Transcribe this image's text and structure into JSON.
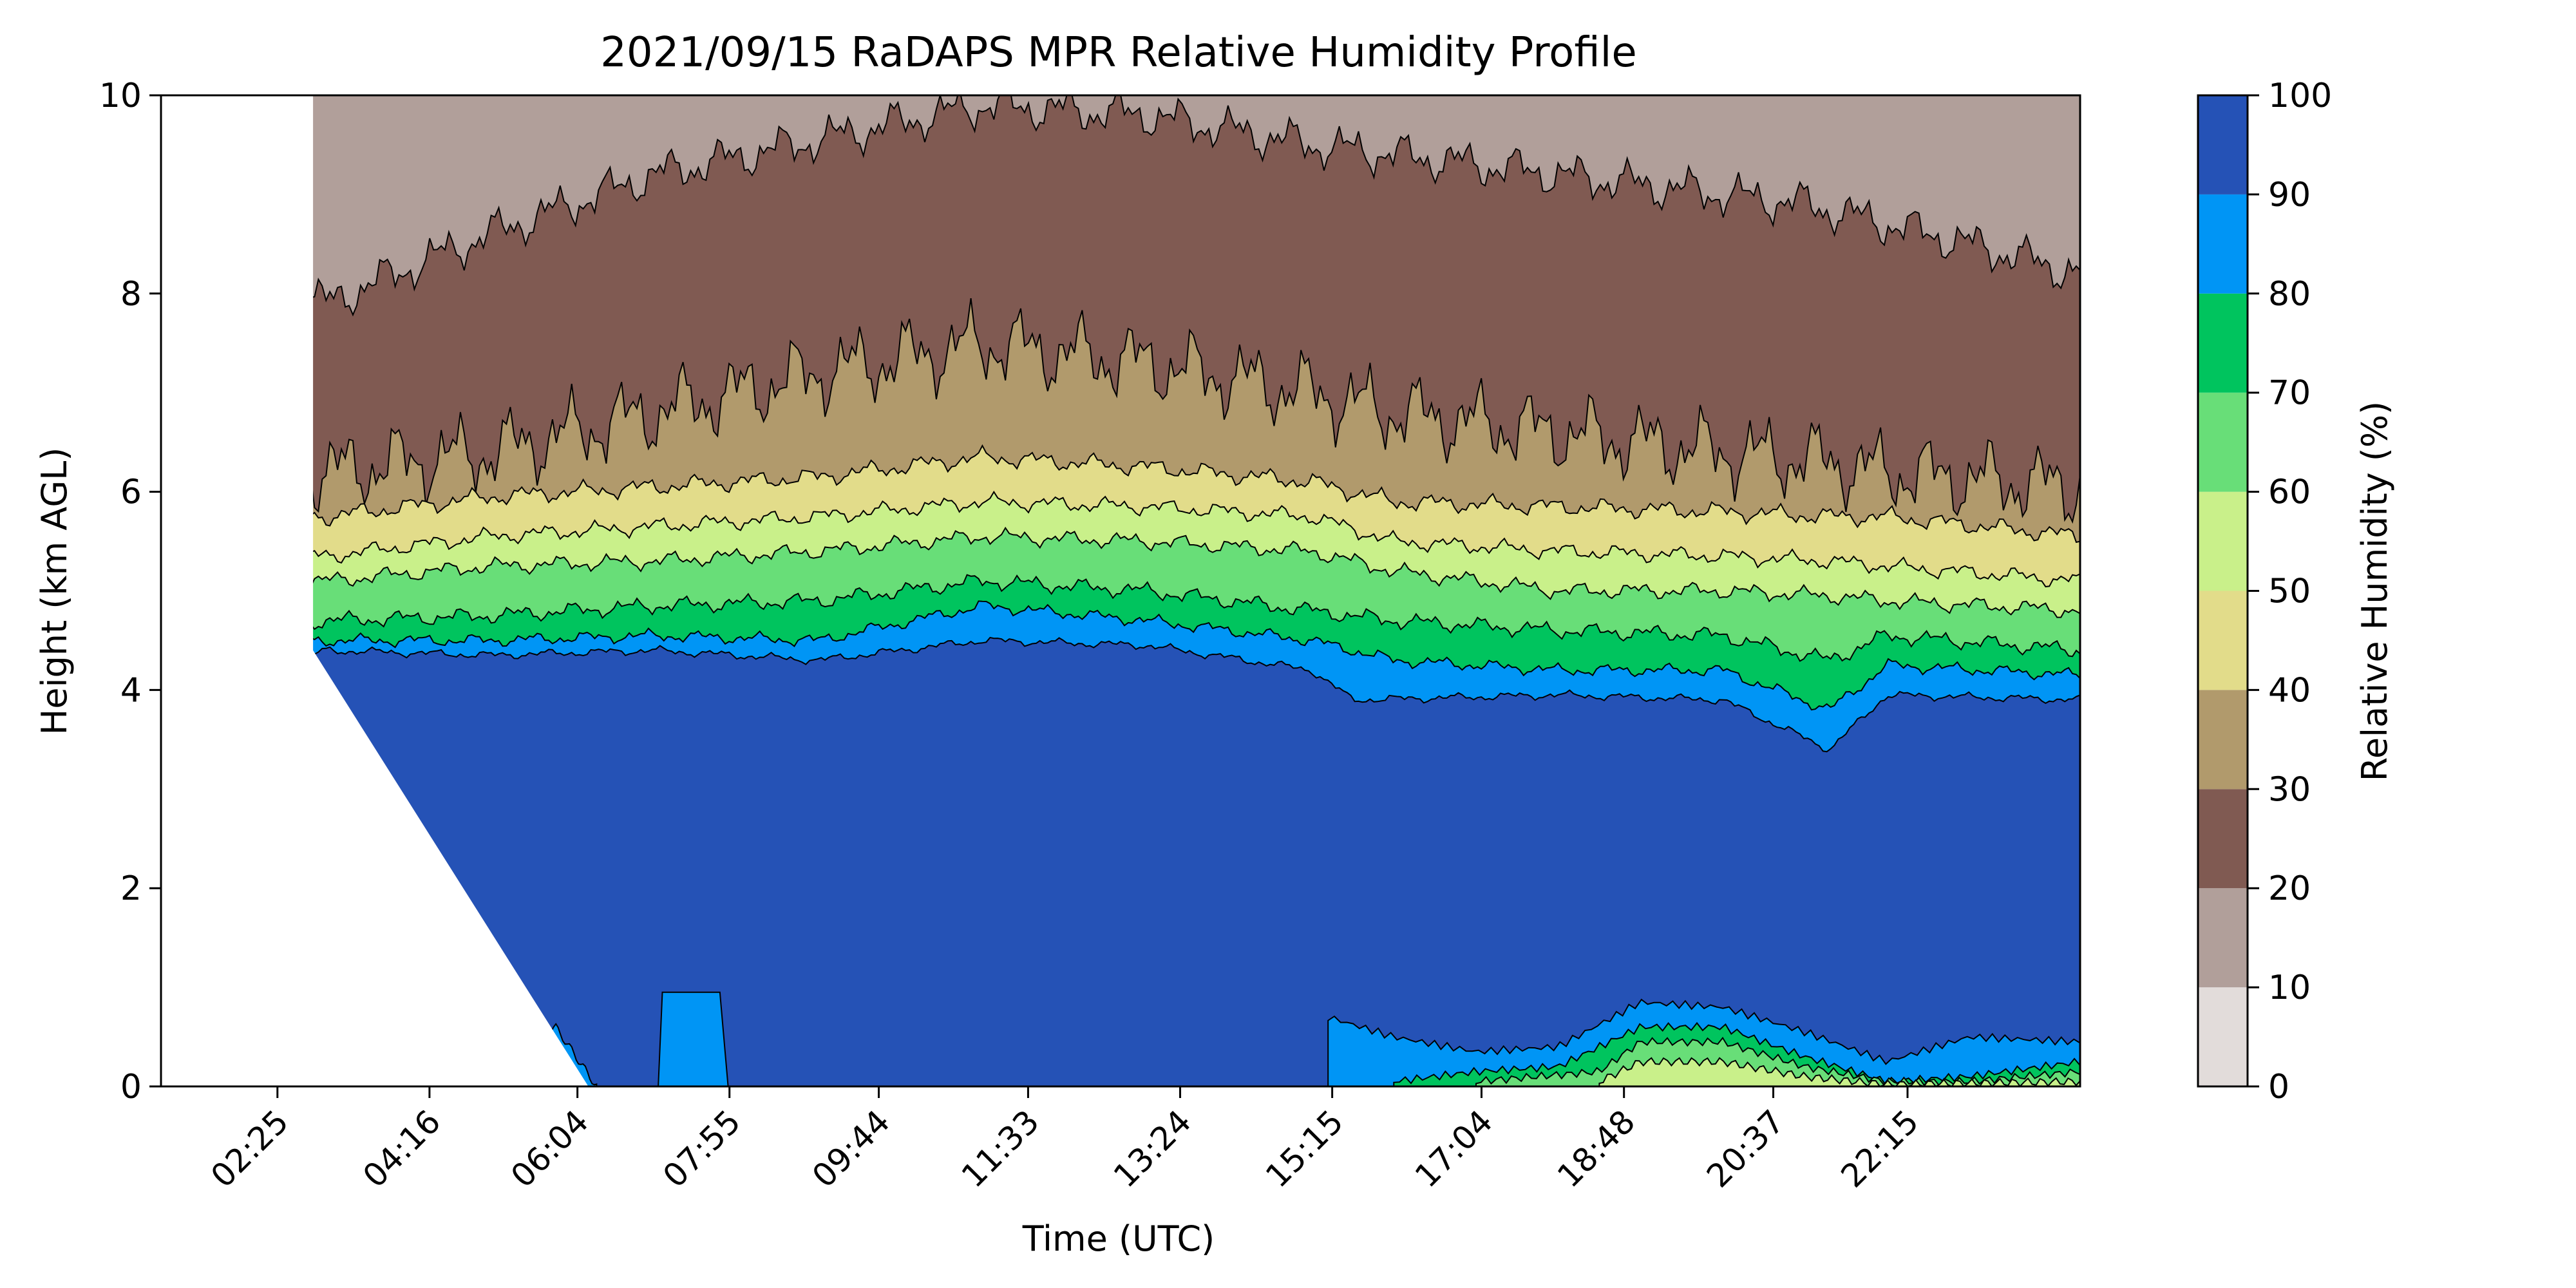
{
  "chart_data": {
    "type": "filled-contour",
    "title": "2021/09/15 RaDAPS MPR Relative Humidity Profile",
    "xlabel": "Time (UTC)",
    "ylabel": "Height (km AGL)",
    "x_ticks": [
      "02:25",
      "04:16",
      "06:04",
      "07:55",
      "09:44",
      "11:33",
      "13:24",
      "15:15",
      "17:04",
      "18:48",
      "20:37",
      "22:15"
    ],
    "x_ticks_decimal_hours": [
      2.4167,
      4.2667,
      6.0667,
      7.9167,
      9.7333,
      11.55,
      13.4,
      15.25,
      17.0667,
      18.8,
      20.6167,
      22.25
    ],
    "xlim_hours": [
      1.0,
      24.35
    ],
    "ylim": [
      0,
      10
    ],
    "y_ticks": [
      "0",
      "2",
      "4",
      "6",
      "8",
      "10"
    ],
    "colorbar": {
      "label": "Relative Humidity (%)",
      "ticks": [
        "0",
        "10",
        "20",
        "30",
        "40",
        "50",
        "60",
        "70",
        "80",
        "90",
        "100"
      ],
      "levels": [
        0,
        10,
        20,
        30,
        40,
        50,
        60,
        70,
        80,
        90,
        100
      ],
      "colors": [
        "#e2dcda",
        "#b19f9a",
        "#805a52",
        "#b19a6c",
        "#e2dc8a",
        "#c9f08a",
        "#68de78",
        "#00c45e",
        "#0095f5",
        "#2552b6"
      ]
    },
    "series": [
      {
        "values": [
          [
            1.0,
            4.15
          ],
          [
            2.5,
            4.25
          ],
          [
            3.0,
            4.4
          ],
          [
            5,
            4.35
          ],
          [
            7,
            4.4
          ],
          [
            9,
            4.3
          ],
          [
            11,
            4.5
          ],
          [
            13,
            4.45
          ],
          [
            15,
            4.2
          ],
          [
            15.5,
            3.9
          ],
          [
            18,
            3.95
          ],
          [
            20,
            3.9
          ],
          [
            21.3,
            3.4
          ],
          [
            22,
            3.95
          ],
          [
            24.35,
            3.9
          ]
        ]
      },
      {
        "values": [
          [
            1.0,
            4.4
          ],
          [
            3.0,
            4.5
          ],
          [
            5,
            4.5
          ],
          [
            7,
            4.55
          ],
          [
            9,
            4.5
          ],
          [
            11,
            4.85
          ],
          [
            13,
            4.7
          ],
          [
            15,
            4.5
          ],
          [
            16,
            4.3
          ],
          [
            18,
            4.2
          ],
          [
            20,
            4.2
          ],
          [
            21.3,
            3.8
          ],
          [
            22,
            4.25
          ],
          [
            24.35,
            4.15
          ]
        ]
      },
      {
        "values": [
          [
            1.0,
            4.6
          ],
          [
            3.0,
            4.7
          ],
          [
            5,
            4.75
          ],
          [
            7,
            4.85
          ],
          [
            9,
            4.9
          ],
          [
            11,
            5.1
          ],
          [
            13,
            5.0
          ],
          [
            15,
            4.8
          ],
          [
            16,
            4.7
          ],
          [
            18,
            4.6
          ],
          [
            20,
            4.55
          ],
          [
            21.3,
            4.3
          ],
          [
            22,
            4.55
          ],
          [
            24.35,
            4.4
          ]
        ]
      },
      {
        "values": [
          [
            1.0,
            5.1
          ],
          [
            3.0,
            5.1
          ],
          [
            5,
            5.25
          ],
          [
            7,
            5.3
          ],
          [
            9,
            5.4
          ],
          [
            11,
            5.55
          ],
          [
            13,
            5.5
          ],
          [
            15,
            5.4
          ],
          [
            16,
            5.2
          ],
          [
            18,
            5.0
          ],
          [
            20,
            5.0
          ],
          [
            21.3,
            4.95
          ],
          [
            22,
            4.9
          ],
          [
            24.35,
            4.8
          ]
        ]
      },
      {
        "values": [
          [
            1.0,
            5.4
          ],
          [
            3.0,
            5.35
          ],
          [
            5,
            5.55
          ],
          [
            7,
            5.65
          ],
          [
            9,
            5.75
          ],
          [
            11,
            5.9
          ],
          [
            13,
            5.85
          ],
          [
            15,
            5.75
          ],
          [
            16,
            5.5
          ],
          [
            18,
            5.4
          ],
          [
            20,
            5.35
          ],
          [
            21.3,
            5.3
          ],
          [
            22,
            5.25
          ],
          [
            24.35,
            5.1
          ]
        ]
      },
      {
        "values": [
          [
            1.0,
            5.8
          ],
          [
            3.0,
            5.75
          ],
          [
            5,
            5.95
          ],
          [
            7,
            6.05
          ],
          [
            9,
            6.15
          ],
          [
            11,
            6.35
          ],
          [
            13,
            6.25
          ],
          [
            15,
            6.1
          ],
          [
            16,
            5.9
          ],
          [
            18,
            5.85
          ],
          [
            20,
            5.8
          ],
          [
            21.3,
            5.75
          ],
          [
            22,
            5.75
          ],
          [
            24.35,
            5.55
          ]
        ]
      },
      {
        "values": [
          [
            1.0,
            6.3
          ],
          [
            3.0,
            6.2
          ],
          [
            5,
            6.4
          ],
          [
            7,
            6.8
          ],
          [
            9,
            7.2
          ],
          [
            11,
            7.5
          ],
          [
            13,
            7.3
          ],
          [
            15,
            7.0
          ],
          [
            16,
            6.8
          ],
          [
            18,
            6.6
          ],
          [
            20,
            6.4
          ],
          [
            21.3,
            6.3
          ],
          [
            22,
            6.2
          ],
          [
            24.35,
            6.05
          ]
        ]
      },
      {
        "values": [
          [
            1.0,
            8.6
          ],
          [
            3.0,
            7.9
          ],
          [
            5,
            8.6
          ],
          [
            7,
            9.2
          ],
          [
            9,
            9.55
          ],
          [
            11,
            9.9
          ],
          [
            13,
            9.8
          ],
          [
            15,
            9.5
          ],
          [
            17,
            9.3
          ],
          [
            19,
            9.1
          ],
          [
            21,
            8.9
          ],
          [
            23,
            8.5
          ],
          [
            24.35,
            8.2
          ]
        ]
      }
    ],
    "surface_layers": [
      {
        "values": [
          [
            3.0,
            0.35
          ],
          [
            4.0,
            0.25
          ],
          [
            5.0,
            0.4
          ],
          [
            5.8,
            0.6
          ],
          [
            6.3,
            0.0
          ]
        ]
      },
      {
        "values": [
          [
            15.2,
            0.7
          ],
          [
            16,
            0.5
          ],
          [
            17,
            0.35
          ],
          [
            18,
            0.4
          ],
          [
            19,
            0.85
          ],
          [
            20,
            0.8
          ],
          [
            21,
            0.55
          ],
          [
            22,
            0.25
          ],
          [
            23,
            0.5
          ],
          [
            24.35,
            0.45
          ]
        ]
      },
      {
        "values": [
          [
            16,
            0.05
          ],
          [
            17,
            0.15
          ],
          [
            18,
            0.2
          ],
          [
            19,
            0.6
          ],
          [
            20,
            0.6
          ],
          [
            21,
            0.3
          ],
          [
            22,
            0.05
          ],
          [
            23,
            0.1
          ],
          [
            24.35,
            0.25
          ]
        ]
      },
      {
        "values": [
          [
            17,
            0.05
          ],
          [
            18.5,
            0.15
          ],
          [
            19,
            0.45
          ],
          [
            20,
            0.45
          ],
          [
            21,
            0.2
          ],
          [
            22,
            0.05
          ],
          [
            23,
            0.05
          ],
          [
            24.35,
            0.15
          ]
        ]
      },
      {
        "values": [
          [
            18.5,
            0.05
          ],
          [
            19,
            0.25
          ],
          [
            20,
            0.25
          ],
          [
            21,
            0.1
          ],
          [
            22,
            0.02
          ],
          [
            24.35,
            0.05
          ]
        ]
      }
    ]
  }
}
